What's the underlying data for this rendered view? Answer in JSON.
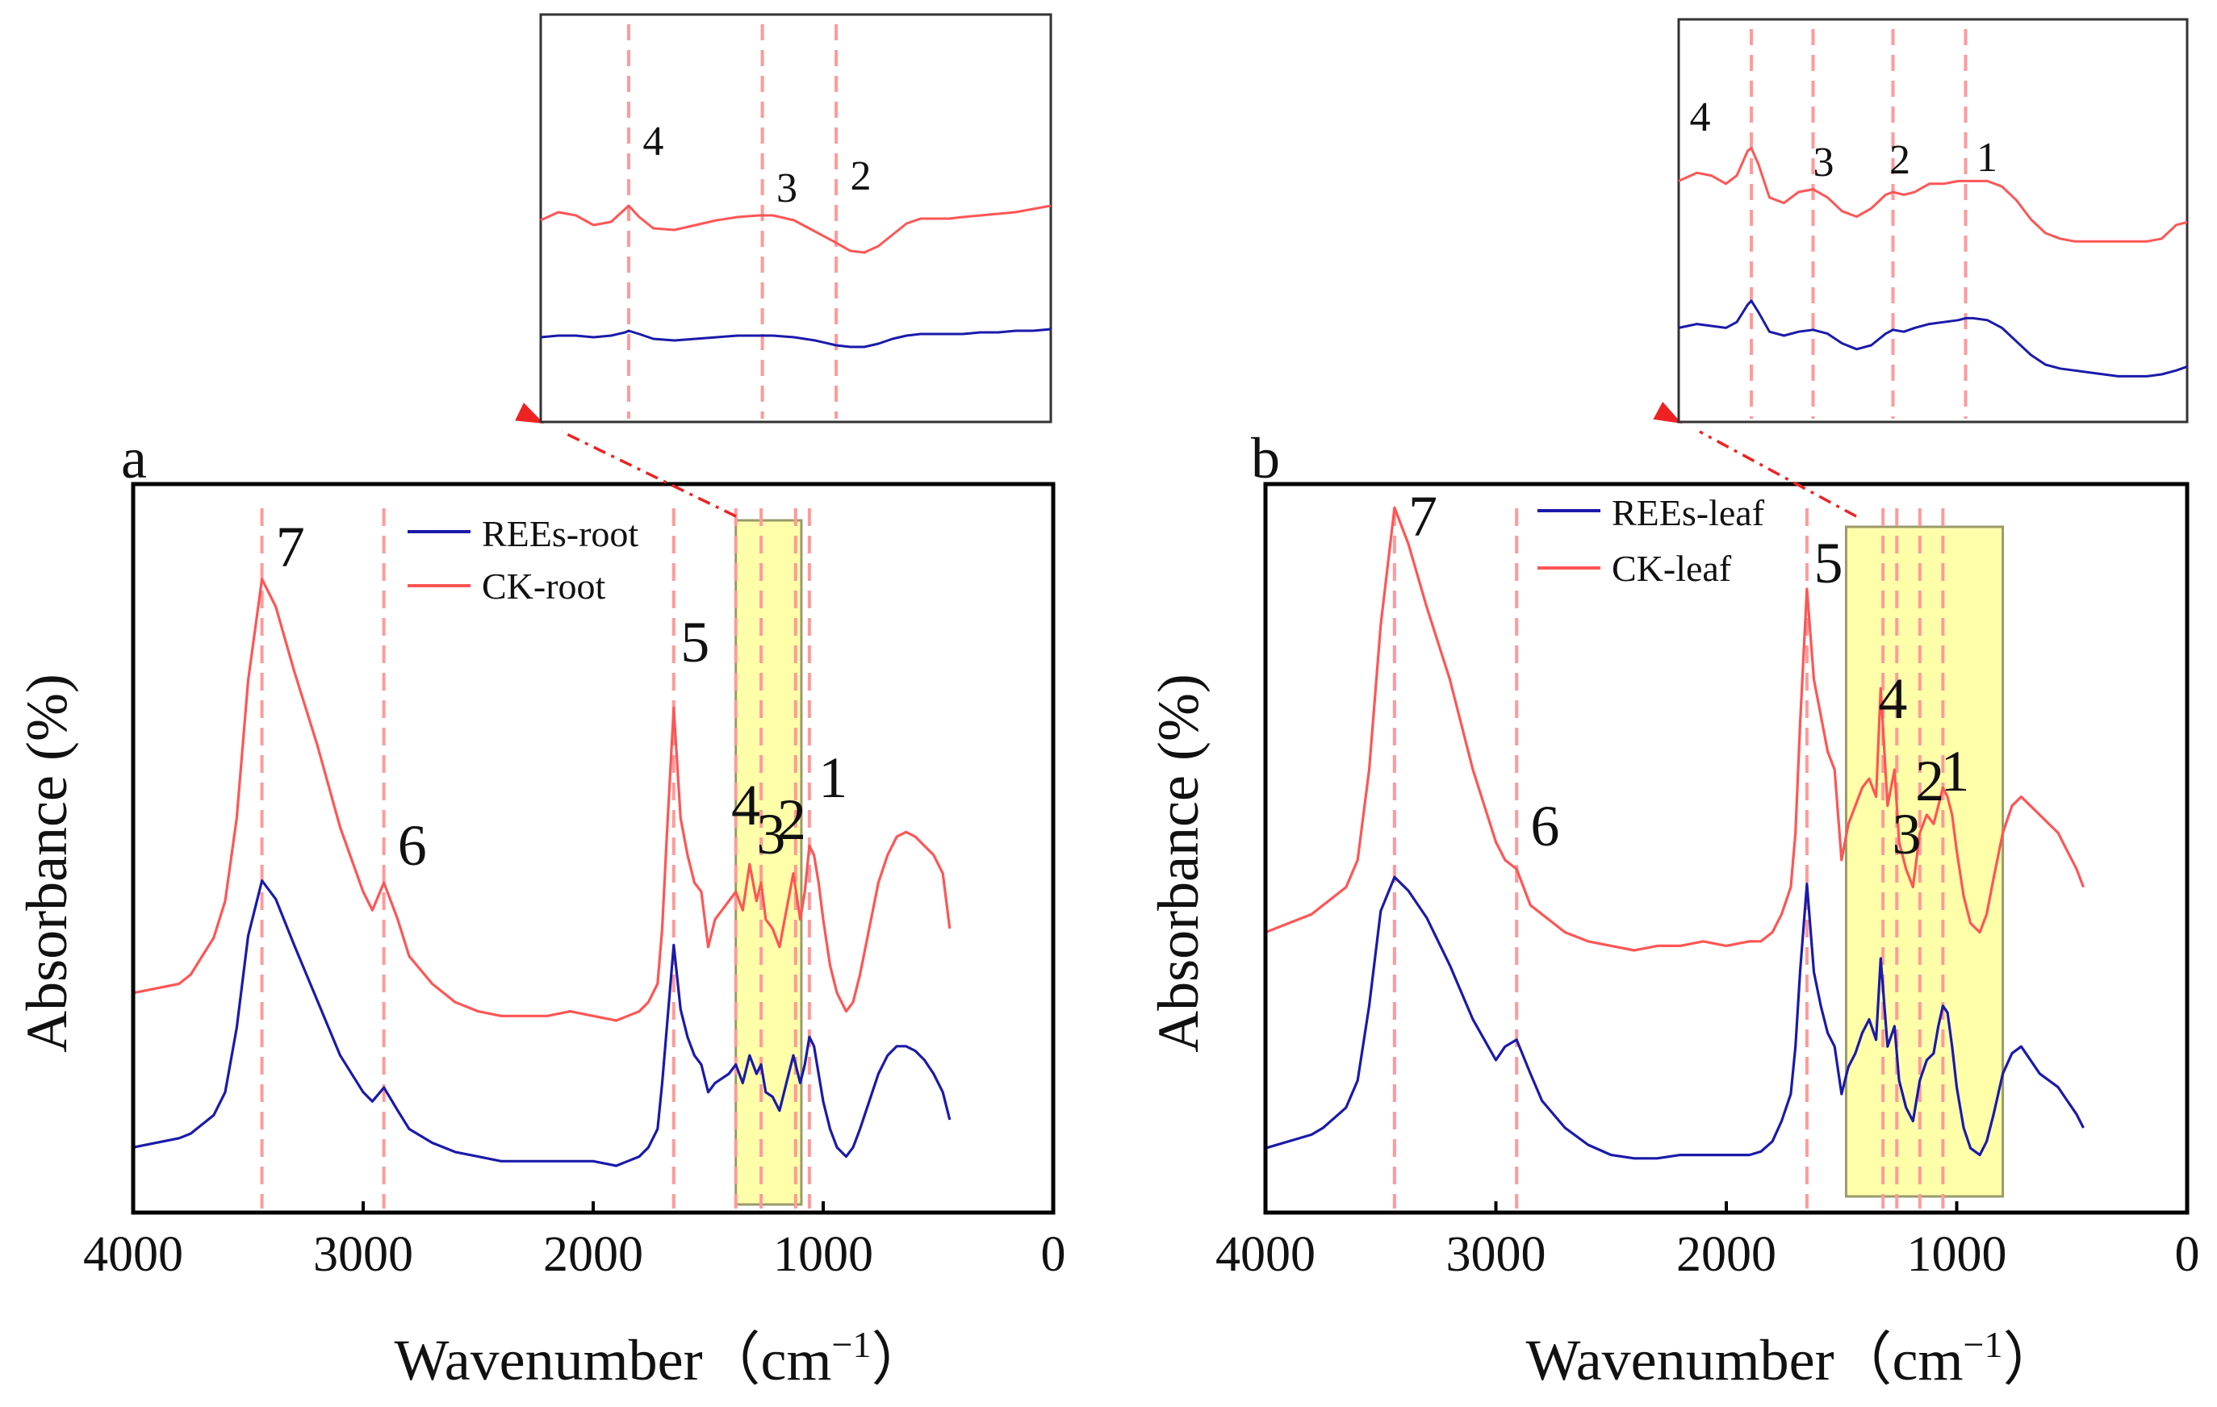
{
  "colors": {
    "ck": "#ff5555",
    "rees": "#1a1aaa",
    "marker": "#ff9a9a",
    "highlight_fill": "#ffffaa",
    "highlight_stroke": "#9a9a6a",
    "axis": "#000000",
    "arrow": "#ee2222"
  },
  "chart_data": [
    {
      "type": "line",
      "panel_label": "a",
      "xlabel": "Wavenumber（cm",
      "xlabel_unit_sup": "−1",
      "xlabel_close": "）",
      "ylabel": "Absorbance (%)",
      "xlim": [
        4000,
        0
      ],
      "xticks": [
        4000,
        3000,
        2000,
        1000,
        0
      ],
      "legend": [
        "REEs-root",
        "CK-root"
      ],
      "highlight_range": [
        1380,
        1095
      ],
      "marker_lines": [
        3440,
        2910,
        1650,
        1380,
        1270,
        1120,
        1060
      ],
      "peak_labels": [
        {
          "text": "7",
          "x": 3440
        },
        {
          "text": "6",
          "x": 2910
        },
        {
          "text": "5",
          "x": 1650
        },
        {
          "text": "4",
          "x": 1380
        },
        {
          "text": "3",
          "x": 1270
        },
        {
          "text": "2",
          "x": 1160
        },
        {
          "text": "1",
          "x": 1060
        }
      ],
      "series": [
        {
          "name": "CK-root",
          "x": [
            4000,
            3800,
            3750,
            3700,
            3650,
            3600,
            3550,
            3500,
            3440,
            3380,
            3300,
            3200,
            3100,
            3000,
            2960,
            2910,
            2850,
            2800,
            2700,
            2600,
            2500,
            2400,
            2300,
            2200,
            2100,
            2000,
            1900,
            1850,
            1800,
            1760,
            1720,
            1700,
            1680,
            1650,
            1620,
            1590,
            1560,
            1530,
            1500,
            1470,
            1440,
            1410,
            1380,
            1350,
            1320,
            1290,
            1270,
            1250,
            1220,
            1190,
            1160,
            1130,
            1100,
            1080,
            1060,
            1040,
            1020,
            1000,
            970,
            940,
            900,
            870,
            840,
            800,
            760,
            720,
            680,
            640,
            600,
            560,
            520,
            480,
            450
          ],
          "y": [
            6,
            8,
            10,
            14,
            18,
            26,
            44,
            74,
            96,
            90,
            76,
            60,
            42,
            28,
            24,
            30,
            22,
            14,
            8,
            4,
            2,
            1,
            1,
            1,
            2,
            1,
            0,
            1,
            2,
            4,
            8,
            20,
            40,
            68,
            44,
            36,
            30,
            28,
            16,
            22,
            24,
            26,
            28,
            24,
            34,
            26,
            30,
            22,
            20,
            16,
            24,
            32,
            22,
            28,
            38,
            36,
            30,
            22,
            12,
            6,
            2,
            4,
            10,
            20,
            30,
            36,
            40,
            41,
            40,
            38,
            36,
            32,
            20
          ]
        },
        {
          "name": "REEs-root",
          "x": [
            4000,
            3800,
            3750,
            3700,
            3650,
            3600,
            3550,
            3500,
            3440,
            3380,
            3300,
            3200,
            3100,
            3000,
            2960,
            2910,
            2850,
            2800,
            2700,
            2600,
            2500,
            2400,
            2300,
            2200,
            2100,
            2000,
            1900,
            1850,
            1800,
            1760,
            1720,
            1700,
            1680,
            1650,
            1620,
            1590,
            1560,
            1530,
            1500,
            1470,
            1440,
            1410,
            1380,
            1350,
            1320,
            1290,
            1270,
            1250,
            1220,
            1190,
            1160,
            1130,
            1100,
            1080,
            1060,
            1040,
            1020,
            1000,
            970,
            940,
            900,
            870,
            840,
            800,
            760,
            720,
            680,
            640,
            600,
            560,
            520,
            480,
            450
          ],
          "y": [
            4,
            6,
            7,
            9,
            11,
            16,
            30,
            50,
            62,
            58,
            48,
            36,
            24,
            16,
            14,
            17,
            12,
            8,
            5,
            3,
            2,
            1,
            1,
            1,
            1,
            1,
            0,
            1,
            2,
            4,
            8,
            18,
            30,
            48,
            34,
            28,
            24,
            22,
            16,
            18,
            19,
            20,
            22,
            18,
            24,
            20,
            22,
            16,
            15,
            12,
            18,
            24,
            18,
            22,
            28,
            26,
            20,
            14,
            8,
            4,
            2,
            4,
            8,
            14,
            20,
            24,
            26,
            26,
            25,
            23,
            20,
            16,
            10
          ]
        }
      ]
    },
    {
      "type": "line",
      "panel_label": "b",
      "xlabel": "Wavenumber（cm",
      "xlabel_unit_sup": "−1",
      "xlabel_close": "）",
      "ylabel": "Absorbance (%)",
      "xlim": [
        4000,
        0
      ],
      "xticks": [
        4000,
        3000,
        2000,
        1000,
        0
      ],
      "legend": [
        "REEs-leaf",
        "CK-leaf"
      ],
      "highlight_range": [
        1480,
        800
      ],
      "marker_lines": [
        3440,
        2910,
        1650,
        1320,
        1260,
        1160,
        1060
      ],
      "peak_labels": [
        {
          "text": "7",
          "x": 3440
        },
        {
          "text": "6",
          "x": 2910
        },
        {
          "text": "5",
          "x": 1650
        },
        {
          "text": "4",
          "x": 1330
        },
        {
          "text": "3",
          "x": 1250
        },
        {
          "text": "2",
          "x": 1160
        },
        {
          "text": "1",
          "x": 1060
        }
      ],
      "series": [
        {
          "name": "CK-leaf",
          "x": [
            4000,
            3800,
            3750,
            3700,
            3650,
            3600,
            3550,
            3500,
            3440,
            3380,
            3300,
            3200,
            3100,
            3000,
            2960,
            2910,
            2850,
            2800,
            2700,
            2600,
            2500,
            2400,
            2300,
            2200,
            2100,
            2000,
            1900,
            1850,
            1800,
            1760,
            1720,
            1700,
            1680,
            1650,
            1620,
            1590,
            1560,
            1530,
            1500,
            1470,
            1440,
            1410,
            1380,
            1350,
            1330,
            1300,
            1270,
            1250,
            1220,
            1190,
            1160,
            1130,
            1100,
            1080,
            1060,
            1040,
            1020,
            1000,
            970,
            940,
            900,
            870,
            840,
            800,
            760,
            720,
            680,
            640,
            600,
            560,
            520,
            480,
            450
          ],
          "y": [
            4,
            8,
            10,
            12,
            14,
            20,
            40,
            72,
            98,
            90,
            76,
            60,
            40,
            24,
            20,
            18,
            10,
            8,
            4,
            2,
            1,
            0,
            1,
            1,
            2,
            1,
            2,
            2,
            4,
            8,
            14,
            26,
            50,
            80,
            60,
            52,
            44,
            40,
            20,
            28,
            32,
            36,
            38,
            34,
            58,
            32,
            40,
            24,
            18,
            14,
            26,
            30,
            28,
            32,
            36,
            34,
            30,
            22,
            12,
            6,
            4,
            8,
            16,
            26,
            32,
            34,
            32,
            30,
            28,
            26,
            22,
            18,
            14
          ]
        },
        {
          "name": "REEs-leaf",
          "x": [
            4000,
            3800,
            3750,
            3700,
            3650,
            3600,
            3550,
            3500,
            3440,
            3380,
            3300,
            3200,
            3100,
            3000,
            2960,
            2910,
            2850,
            2800,
            2700,
            2600,
            2500,
            2400,
            2300,
            2200,
            2100,
            2000,
            1900,
            1850,
            1800,
            1760,
            1720,
            1700,
            1680,
            1650,
            1620,
            1590,
            1560,
            1530,
            1500,
            1470,
            1440,
            1410,
            1380,
            1350,
            1330,
            1300,
            1270,
            1250,
            1220,
            1190,
            1160,
            1130,
            1100,
            1080,
            1060,
            1040,
            1020,
            1000,
            970,
            940,
            900,
            870,
            840,
            800,
            760,
            720,
            680,
            640,
            600,
            560,
            520,
            480,
            450
          ],
          "y": [
            4,
            8,
            10,
            13,
            16,
            24,
            46,
            74,
            84,
            80,
            72,
            58,
            42,
            30,
            34,
            36,
            26,
            18,
            10,
            5,
            2,
            1,
            1,
            2,
            2,
            2,
            2,
            3,
            6,
            12,
            20,
            34,
            56,
            82,
            56,
            46,
            38,
            34,
            20,
            28,
            32,
            38,
            42,
            36,
            60,
            34,
            40,
            24,
            16,
            12,
            24,
            30,
            32,
            40,
            46,
            44,
            34,
            22,
            10,
            4,
            2,
            6,
            14,
            26,
            32,
            34,
            30,
            26,
            24,
            22,
            18,
            14,
            10
          ]
        }
      ]
    }
  ],
  "insets": [
    {
      "panel": "a",
      "marker_lines": [
        1650,
        1270,
        1060
      ],
      "peak_labels": [
        {
          "text": "4",
          "x": 1650
        },
        {
          "text": "3",
          "x": 1270
        },
        {
          "text": "2",
          "x": 1060
        }
      ],
      "xrange": [
        1900,
        450
      ],
      "series": [
        {
          "name": "CK-root",
          "x": [
            1900,
            1850,
            1800,
            1750,
            1700,
            1660,
            1650,
            1620,
            1580,
            1520,
            1460,
            1400,
            1340,
            1280,
            1240,
            1180,
            1120,
            1060,
            1020,
            980,
            940,
            900,
            860,
            820,
            780,
            740,
            700,
            650,
            600,
            550,
            500,
            450
          ],
          "y": [
            72,
            82,
            78,
            66,
            70,
            86,
            90,
            76,
            62,
            60,
            66,
            72,
            76,
            78,
            78,
            72,
            58,
            44,
            34,
            32,
            40,
            54,
            68,
            74,
            74,
            74,
            76,
            78,
            80,
            82,
            86,
            90
          ]
        },
        {
          "name": "REEs-root",
          "x": [
            1900,
            1850,
            1800,
            1750,
            1700,
            1660,
            1650,
            1620,
            1580,
            1520,
            1460,
            1400,
            1340,
            1280,
            1240,
            1180,
            1120,
            1060,
            1020,
            980,
            940,
            900,
            860,
            820,
            780,
            740,
            700,
            650,
            600,
            550,
            500,
            450
          ],
          "y": [
            22,
            24,
            24,
            22,
            24,
            28,
            30,
            26,
            20,
            18,
            20,
            22,
            24,
            24,
            24,
            22,
            18,
            12,
            10,
            10,
            14,
            20,
            24,
            26,
            26,
            26,
            26,
            28,
            28,
            30,
            30,
            32
          ]
        }
      ]
    },
    {
      "panel": "b",
      "marker_lines": [
        1650,
        1480,
        1260,
        1060
      ],
      "peak_labels": [
        {
          "text": "4",
          "x": 1700
        },
        {
          "text": "3",
          "x": 1480
        },
        {
          "text": "2",
          "x": 1260
        },
        {
          "text": "1",
          "x": 1060
        }
      ],
      "xrange": [
        1850,
        450
      ],
      "series": [
        {
          "name": "CK-leaf",
          "x": [
            1850,
            1800,
            1760,
            1720,
            1690,
            1660,
            1650,
            1630,
            1600,
            1560,
            1520,
            1480,
            1440,
            1400,
            1360,
            1320,
            1280,
            1260,
            1230,
            1200,
            1160,
            1120,
            1080,
            1060,
            1040,
            1000,
            960,
            920,
            880,
            840,
            800,
            760,
            720,
            680,
            640,
            600,
            560,
            520,
            480,
            450
          ],
          "y": [
            68,
            74,
            72,
            66,
            72,
            90,
            92,
            80,
            56,
            52,
            60,
            62,
            56,
            46,
            42,
            48,
            58,
            60,
            58,
            60,
            66,
            66,
            68,
            68,
            68,
            68,
            64,
            54,
            40,
            30,
            26,
            24,
            24,
            24,
            24,
            24,
            24,
            26,
            36,
            38
          ]
        },
        {
          "name": "REEs-leaf",
          "x": [
            1850,
            1800,
            1760,
            1720,
            1690,
            1660,
            1650,
            1630,
            1600,
            1560,
            1520,
            1480,
            1440,
            1400,
            1360,
            1320,
            1280,
            1260,
            1230,
            1200,
            1160,
            1120,
            1080,
            1060,
            1040,
            1000,
            960,
            920,
            880,
            840,
            800,
            760,
            720,
            680,
            640,
            600,
            560,
            520,
            480,
            450
          ],
          "y": [
            28,
            32,
            30,
            28,
            34,
            52,
            56,
            44,
            24,
            20,
            24,
            26,
            22,
            12,
            6,
            10,
            22,
            26,
            24,
            28,
            32,
            34,
            36,
            38,
            38,
            36,
            28,
            14,
            0,
            -10,
            -14,
            -16,
            -18,
            -20,
            -22,
            -22,
            -22,
            -20,
            -16,
            -12
          ]
        }
      ]
    }
  ]
}
